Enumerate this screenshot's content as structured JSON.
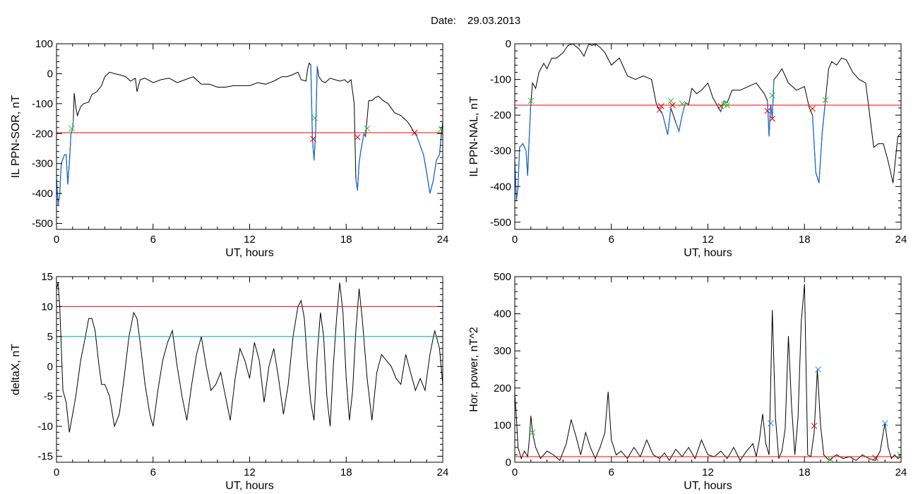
{
  "header": {
    "date_label": "Date:",
    "date_value": "29.03.2013"
  },
  "colors": {
    "trace": "#000000",
    "threshold_red": "#ff0000",
    "threshold_teal": "#00a0a0",
    "blue_segment": "#1f6fd0",
    "marker_red": "#e00000",
    "marker_green": "#22c022",
    "marker_blue": "#3388ee"
  },
  "chart_data": [
    {
      "type": "line",
      "ylabel": "IL PPN-SOR, nT",
      "xlabel": "UT, hours",
      "xlim": [
        0,
        24
      ],
      "ylim": [
        -520,
        100
      ],
      "xticks": [
        "0",
        "6",
        "12",
        "18",
        "24"
      ],
      "xtick_values": [
        0,
        6,
        12,
        18,
        24
      ],
      "yticks": [
        "100",
        "0",
        "-100",
        "-200",
        "-300",
        "-400",
        "-500"
      ],
      "ytick_values": [
        100,
        0,
        -100,
        -200,
        -300,
        -400,
        -500
      ],
      "threshold_lines": [
        {
          "y": -197,
          "color": "#ff0000"
        }
      ],
      "series": [
        {
          "color": "#000000",
          "x": [
            0,
            0.1,
            0.2,
            0.3,
            0.4,
            0.5,
            0.6,
            0.7,
            0.8,
            0.9,
            1.0,
            1.05,
            1.1,
            1.2,
            1.3,
            1.5,
            1.7,
            2.0,
            2.2,
            2.5,
            2.8,
            3.0,
            3.3,
            3.6,
            4.0,
            4.3,
            4.6,
            4.9,
            5.0,
            5.2,
            5.5,
            6.0,
            6.5,
            7.0,
            7.5,
            8.0,
            8.5,
            9.0,
            9.5,
            10.0,
            10.5,
            11.0,
            11.5,
            12.0,
            12.5,
            13.0,
            13.5,
            14.0,
            14.3,
            14.6,
            15.0,
            15.2,
            15.5,
            15.6,
            15.7,
            15.8,
            15.9,
            16.0,
            16.1,
            16.2,
            16.3,
            16.5,
            16.7,
            17.0,
            17.3,
            17.6,
            17.9,
            18.1,
            18.3,
            18.5,
            18.6,
            18.7,
            18.8,
            18.9,
            19.0,
            19.1,
            19.2,
            19.4,
            19.6,
            19.8,
            20.0,
            20.3,
            20.6,
            21.0,
            21.4,
            21.8,
            22.0,
            22.2,
            22.4,
            22.6,
            22.8,
            23.0,
            23.2,
            23.4,
            23.6,
            23.8,
            23.9,
            24.0
          ],
          "y": [
            -350,
            -440,
            -400,
            -300,
            -285,
            -270,
            -270,
            -370,
            -300,
            -200,
            -185,
            -150,
            -65,
            -110,
            -140,
            -110,
            -100,
            -95,
            -70,
            -60,
            -40,
            -10,
            5,
            0,
            -5,
            -10,
            -25,
            -15,
            -60,
            -20,
            -15,
            -30,
            -20,
            -15,
            -30,
            -20,
            -10,
            -35,
            -35,
            -45,
            -45,
            -40,
            -40,
            -40,
            -30,
            -35,
            -25,
            -10,
            -10,
            -5,
            5,
            -20,
            -25,
            15,
            35,
            30,
            -215,
            -290,
            -200,
            25,
            -10,
            -25,
            -30,
            -15,
            -20,
            -25,
            -20,
            -30,
            -20,
            -100,
            -350,
            -390,
            -300,
            -260,
            -230,
            -200,
            -210,
            -90,
            -90,
            -80,
            -75,
            -90,
            -100,
            -130,
            -140,
            -160,
            -175,
            -195,
            -210,
            -240,
            -270,
            -330,
            -400,
            -360,
            -290,
            -270,
            -210,
            -160
          ]
        }
      ],
      "blue_segments": [
        [
          0,
          1.05
        ],
        [
          15.8,
          16.2
        ],
        [
          18.55,
          19.35
        ],
        [
          22.2,
          23.9
        ]
      ],
      "markers": [
        {
          "x": 0.95,
          "y": -183,
          "color": "#22c022"
        },
        {
          "x": 15.95,
          "y": -218,
          "color": "#e00000"
        },
        {
          "x": 16.05,
          "y": -148,
          "color": "#22c022"
        },
        {
          "x": 18.7,
          "y": -212,
          "color": "#e00000"
        },
        {
          "x": 19.3,
          "y": -183,
          "color": "#22c022"
        },
        {
          "x": 22.25,
          "y": -197,
          "color": "#e00000"
        },
        {
          "x": 23.9,
          "y": -185,
          "color": "#22c022"
        }
      ]
    },
    {
      "type": "line",
      "ylabel": "IL PPN-NAL, nT",
      "xlabel": "UT, hours",
      "xlim": [
        0,
        24
      ],
      "ylim": [
        -520,
        0
      ],
      "xticks": [
        "0",
        "6",
        "12",
        "18",
        "24"
      ],
      "xtick_values": [
        0,
        6,
        12,
        18,
        24
      ],
      "yticks": [
        "0",
        "-100",
        "-200",
        "-300",
        "-400",
        "-500"
      ],
      "ytick_values": [
        0,
        -100,
        -200,
        -300,
        -400,
        -500
      ],
      "threshold_lines": [
        {
          "y": -172,
          "color": "#ff0000"
        }
      ],
      "series": [
        {
          "color": "#000000",
          "x": [
            0,
            0.1,
            0.2,
            0.3,
            0.5,
            0.7,
            0.8,
            0.9,
            1.0,
            1.1,
            1.3,
            1.5,
            1.8,
            2.0,
            2.3,
            2.6,
            3.0,
            3.3,
            3.6,
            4.0,
            4.3,
            4.6,
            4.8,
            5.0,
            5.3,
            5.6,
            6.0,
            6.5,
            7.0,
            7.5,
            8.0,
            8.5,
            8.8,
            9.0,
            9.2,
            9.5,
            9.7,
            10.0,
            10.2,
            10.4,
            10.6,
            10.8,
            11.0,
            11.3,
            11.6,
            12.0,
            12.3,
            12.6,
            12.8,
            13.0,
            13.2,
            13.5,
            14.0,
            14.5,
            15.0,
            15.5,
            15.7,
            15.8,
            15.9,
            16.0,
            16.1,
            16.3,
            16.6,
            17.0,
            17.5,
            18.0,
            18.3,
            18.5,
            18.7,
            18.9,
            19.1,
            19.3,
            19.5,
            19.7,
            20.0,
            20.3,
            20.6,
            21.0,
            21.4,
            21.8,
            22.0,
            22.3,
            22.6,
            22.9,
            23.2,
            23.5,
            23.8,
            24.0
          ],
          "y": [
            -330,
            -440,
            -400,
            -290,
            -280,
            -300,
            -370,
            -260,
            -165,
            -110,
            -125,
            -80,
            -55,
            -70,
            -40,
            -40,
            -25,
            -5,
            0,
            -15,
            -35,
            0,
            -5,
            0,
            -10,
            -25,
            -60,
            -40,
            -90,
            -100,
            -90,
            -100,
            -170,
            -185,
            -200,
            -255,
            -180,
            -220,
            -245,
            -200,
            -165,
            -170,
            -125,
            -140,
            -130,
            -110,
            -150,
            -175,
            -190,
            -160,
            -165,
            -130,
            -130,
            -120,
            -110,
            -140,
            -160,
            -260,
            -170,
            -210,
            -100,
            -90,
            -70,
            -110,
            -130,
            -120,
            -180,
            -200,
            -360,
            -390,
            -250,
            -160,
            -70,
            -50,
            -60,
            -40,
            -45,
            -80,
            -100,
            -110,
            -180,
            -290,
            -280,
            -280,
            -330,
            -390,
            -260,
            -250
          ]
        }
      ],
      "blue_segments": [
        [
          0,
          1.0
        ],
        [
          8.9,
          9.8
        ],
        [
          9.9,
          10.6
        ],
        [
          12.8,
          13.3
        ],
        [
          15.7,
          16.1
        ],
        [
          18.4,
          19.3
        ]
      ],
      "markers": [
        {
          "x": 1.0,
          "y": -160,
          "color": "#22c022"
        },
        {
          "x": 9.0,
          "y": -185,
          "color": "#e00000"
        },
        {
          "x": 9.1,
          "y": -175,
          "color": "#e00000"
        },
        {
          "x": 9.8,
          "y": -172,
          "color": "#e00000"
        },
        {
          "x": 9.7,
          "y": -160,
          "color": "#22c022"
        },
        {
          "x": 10.4,
          "y": -168,
          "color": "#22c022"
        },
        {
          "x": 12.8,
          "y": -175,
          "color": "#e00000"
        },
        {
          "x": 13.0,
          "y": -170,
          "color": "#22c022"
        },
        {
          "x": 13.2,
          "y": -172,
          "color": "#22c022"
        },
        {
          "x": 15.7,
          "y": -188,
          "color": "#e00000"
        },
        {
          "x": 16.0,
          "y": -210,
          "color": "#e00000"
        },
        {
          "x": 16.0,
          "y": -145,
          "color": "#22c022"
        },
        {
          "x": 18.5,
          "y": -182,
          "color": "#e00000"
        },
        {
          "x": 19.3,
          "y": -158,
          "color": "#22c022"
        }
      ]
    },
    {
      "type": "line",
      "ylabel": "deltaX, nT",
      "xlabel": "UT, hours",
      "xlim": [
        0,
        24
      ],
      "ylim": [
        -16,
        15
      ],
      "xticks": [
        "0",
        "6",
        "12",
        "18",
        "24"
      ],
      "xtick_values": [
        0,
        6,
        12,
        18,
        24
      ],
      "yticks": [
        "15",
        "10",
        "5",
        "0",
        "-5",
        "-10",
        "-15"
      ],
      "ytick_values": [
        15,
        10,
        5,
        0,
        -5,
        -10,
        -15
      ],
      "threshold_lines": [
        {
          "y": 10,
          "color": "#ff0000"
        },
        {
          "y": 5,
          "color": "#00a0a0"
        }
      ],
      "series": [
        {
          "color": "#000000",
          "x": [
            0,
            0.1,
            0.2,
            0.4,
            0.6,
            0.8,
            1.0,
            1.2,
            1.5,
            1.8,
            2.0,
            2.2,
            2.4,
            2.6,
            2.8,
            3.0,
            3.3,
            3.6,
            3.9,
            4.2,
            4.5,
            4.8,
            5.0,
            5.2,
            5.5,
            5.8,
            6.0,
            6.3,
            6.6,
            6.9,
            7.2,
            7.5,
            7.8,
            8.1,
            8.4,
            8.7,
            9.0,
            9.3,
            9.6,
            9.9,
            10.2,
            10.5,
            10.8,
            11.1,
            11.4,
            11.7,
            12.0,
            12.3,
            12.6,
            12.9,
            13.2,
            13.5,
            13.8,
            14.1,
            14.4,
            14.7,
            15.0,
            15.2,
            15.4,
            15.6,
            15.8,
            16.0,
            16.2,
            16.4,
            16.6,
            16.8,
            17.0,
            17.2,
            17.4,
            17.6,
            17.8,
            18.0,
            18.2,
            18.4,
            18.6,
            18.8,
            19.0,
            19.3,
            19.6,
            19.9,
            20.2,
            20.5,
            20.8,
            21.1,
            21.4,
            21.7,
            22.0,
            22.3,
            22.6,
            22.9,
            23.2,
            23.5,
            23.8,
            24.0
          ],
          "y": [
            13,
            14,
            10,
            -4,
            -6,
            -11,
            -8,
            -5,
            1,
            5,
            8,
            8,
            6,
            1,
            -3,
            -3,
            -5,
            -10,
            -8,
            -2,
            5,
            9,
            8,
            4,
            -3,
            -8,
            -10,
            -4,
            1,
            4,
            6,
            0,
            -5,
            -9,
            -3,
            2,
            5,
            0,
            -4,
            -3,
            -1,
            -5,
            -9,
            -2,
            3,
            1,
            -2,
            4,
            1,
            -6,
            0,
            3,
            -2,
            -8,
            -3,
            5,
            10,
            11,
            8,
            0,
            -6,
            -9,
            2,
            9,
            5,
            -5,
            -10,
            0,
            8,
            14,
            9,
            -2,
            -9,
            -4,
            6,
            13,
            8,
            -2,
            -9,
            -1,
            2,
            1,
            0,
            -2,
            -3,
            2,
            -1,
            -4,
            -2,
            -4,
            2,
            6,
            3,
            -3
          ]
        }
      ],
      "blue_segments": [],
      "markers": []
    },
    {
      "type": "line",
      "ylabel": "Hor. power, nT^2",
      "xlabel": "UT, hours",
      "xlim": [
        0,
        24
      ],
      "ylim": [
        0,
        500
      ],
      "xticks": [
        "0",
        "6",
        "12",
        "18",
        "24"
      ],
      "xtick_values": [
        0,
        6,
        12,
        18,
        24
      ],
      "yticks": [
        "500",
        "400",
        "300",
        "200",
        "100",
        "0"
      ],
      "ytick_values": [
        500,
        400,
        300,
        200,
        100,
        0
      ],
      "threshold_lines": [
        {
          "y": 15,
          "color": "#ff0000"
        }
      ],
      "series": [
        {
          "color": "#000000",
          "x": [
            0,
            0.1,
            0.2,
            0.4,
            0.6,
            0.8,
            0.9,
            1.0,
            1.1,
            1.3,
            1.6,
            2.0,
            2.4,
            2.8,
            3.2,
            3.5,
            3.8,
            4.1,
            4.4,
            4.7,
            5.0,
            5.3,
            5.6,
            5.8,
            6.0,
            6.3,
            6.6,
            7.0,
            7.4,
            7.8,
            8.2,
            8.6,
            9.0,
            9.3,
            9.6,
            10.0,
            10.4,
            10.8,
            11.2,
            11.6,
            12.0,
            12.4,
            12.8,
            13.2,
            13.6,
            14.0,
            14.4,
            14.8,
            15.0,
            15.2,
            15.4,
            15.6,
            15.8,
            16.0,
            16.2,
            16.4,
            16.6,
            16.8,
            17.0,
            17.2,
            17.4,
            17.6,
            17.8,
            18.0,
            18.2,
            18.4,
            18.6,
            18.8,
            19.0,
            19.2,
            19.4,
            19.6,
            19.8,
            20.0,
            20.4,
            20.8,
            21.2,
            21.6,
            22.0,
            22.4,
            22.7,
            23.0,
            23.2,
            23.4,
            23.6,
            23.8,
            24.0
          ],
          "y": [
            185,
            120,
            40,
            10,
            30,
            15,
            60,
            125,
            80,
            40,
            10,
            30,
            20,
            5,
            50,
            115,
            70,
            20,
            80,
            40,
            10,
            40,
            80,
            190,
            60,
            20,
            30,
            10,
            40,
            15,
            60,
            20,
            10,
            25,
            5,
            35,
            15,
            40,
            10,
            60,
            20,
            15,
            30,
            10,
            40,
            5,
            30,
            50,
            15,
            60,
            130,
            50,
            20,
            410,
            120,
            10,
            30,
            90,
            340,
            150,
            20,
            120,
            380,
            480,
            20,
            15,
            80,
            250,
            100,
            20,
            10,
            5,
            15,
            20,
            10,
            15,
            5,
            20,
            10,
            5,
            30,
            105,
            40,
            10,
            20,
            10,
            15
          ]
        }
      ],
      "blue_segments": [],
      "markers": [
        {
          "x": 1.1,
          "y": 80,
          "color": "#22c022"
        },
        {
          "x": 15.9,
          "y": 105,
          "color": "#3388ee"
        },
        {
          "x": 18.6,
          "y": 98,
          "color": "#e00000"
        },
        {
          "x": 18.85,
          "y": 250,
          "color": "#3388ee"
        },
        {
          "x": 19.6,
          "y": 8,
          "color": "#22c022"
        },
        {
          "x": 22.4,
          "y": 12,
          "color": "#e00000"
        },
        {
          "x": 23.0,
          "y": 105,
          "color": "#3388ee"
        },
        {
          "x": 23.95,
          "y": 20,
          "color": "#22c022"
        }
      ]
    }
  ]
}
